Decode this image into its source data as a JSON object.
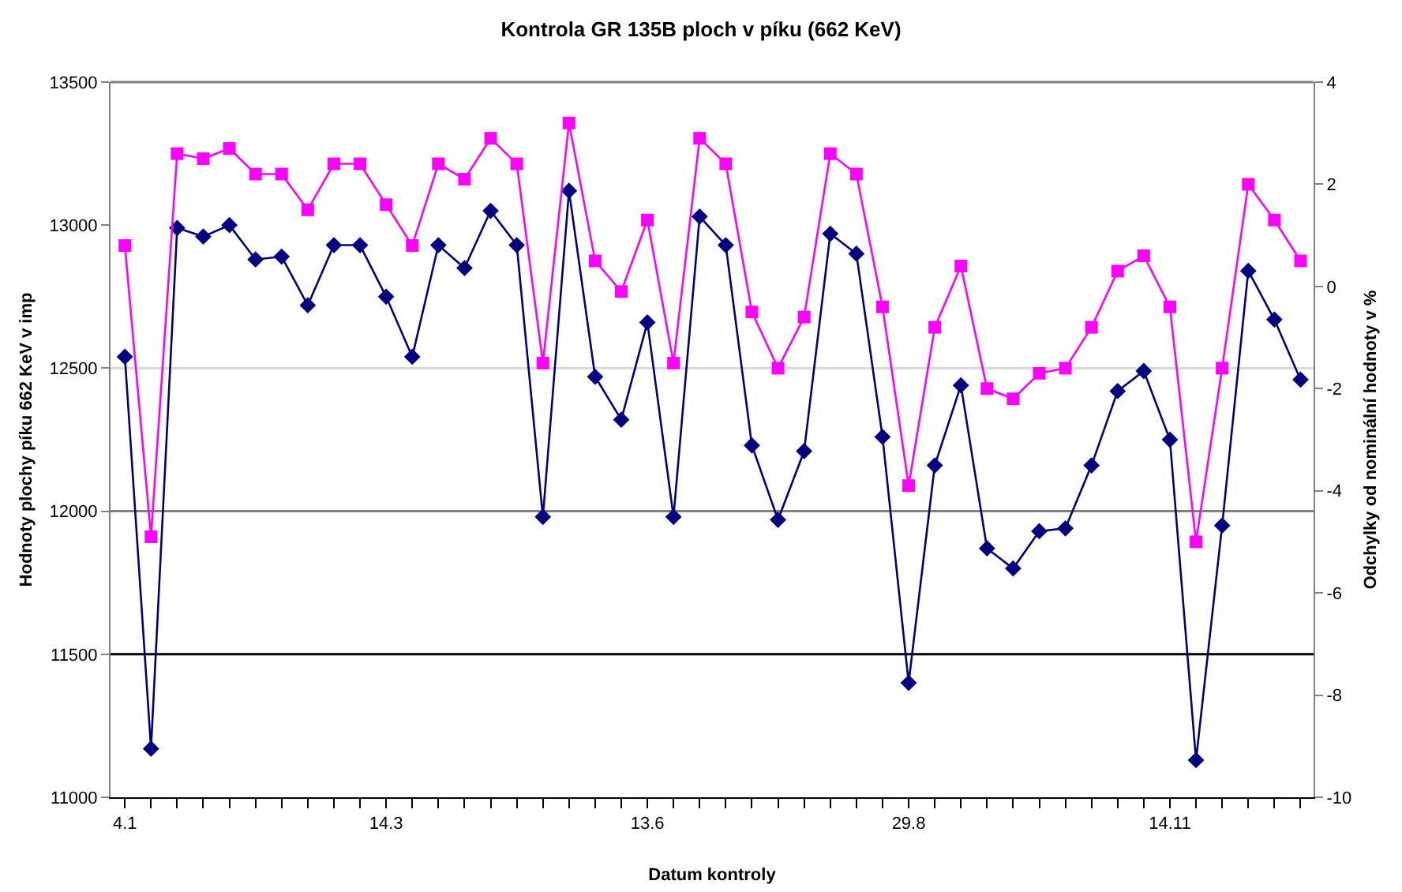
{
  "chart_data": {
    "type": "line",
    "title": "Kontrola GR 135B ploch v píku (662 KeV)",
    "xlabel": "Datum kontroly",
    "ylabel": "Hodnoty plochy píku 662 KeV v imp",
    "y2label": "Odchylky od nominální hodnoty v %",
    "categories": [
      "4.1",
      null,
      null,
      null,
      null,
      null,
      null,
      null,
      null,
      null,
      "14.3",
      null,
      null,
      null,
      null,
      null,
      null,
      null,
      null,
      null,
      "13.6",
      null,
      null,
      null,
      null,
      null,
      null,
      null,
      null,
      null,
      "29.8",
      null,
      null,
      null,
      null,
      null,
      null,
      null,
      null,
      null,
      "14.11",
      null,
      null,
      null,
      null,
      null
    ],
    "series": [
      {
        "color": "#000080",
        "marker": "diamond",
        "values": [
          12540,
          11170,
          12990,
          12960,
          13000,
          12880,
          12890,
          12720,
          12930,
          12930,
          12750,
          12540,
          12930,
          12850,
          13050,
          12930,
          11980,
          13120,
          12470,
          12320,
          12660,
          11980,
          13030,
          12930,
          12230,
          11970,
          12210,
          12970,
          12900,
          12260,
          11400,
          12160,
          12440,
          11870,
          11800,
          11930,
          11940,
          12160,
          12420,
          12490,
          12250,
          11130,
          11950,
          12840,
          12670,
          12460
        ]
      },
      {
        "color": "#ff00ff",
        "marker": "square",
        "axis": "y2",
        "values": [
          0.8,
          -4.9,
          2.6,
          2.5,
          2.7,
          2.2,
          2.2,
          1.5,
          2.4,
          2.4,
          1.6,
          0.8,
          2.4,
          2.1,
          2.9,
          2.4,
          -1.5,
          3.2,
          0.5,
          -0.1,
          1.3,
          -1.5,
          2.9,
          2.4,
          -0.5,
          -1.6,
          -0.6,
          2.6,
          2.2,
          -0.4,
          -3.9,
          -0.8,
          0.4,
          -2.0,
          -2.2,
          -1.7,
          -1.6,
          -0.8,
          0.3,
          0.6,
          -0.4,
          -5.0,
          -1.6,
          2.0,
          1.3,
          0.5
        ]
      }
    ],
    "ylim": [
      11000,
      13500
    ],
    "yticks": [
      11000,
      11500,
      12000,
      12500,
      13000,
      13500
    ],
    "y2lim": [
      -10,
      4
    ],
    "y2ticks": [
      -10,
      -8,
      -6,
      -4,
      -2,
      0,
      2,
      4
    ],
    "ref_lines": [
      {
        "axis": "y",
        "value": 12500,
        "color": "#d9d9d9"
      },
      {
        "axis": "y",
        "value": 12000,
        "color": "#808080"
      },
      {
        "axis": "y",
        "value": 11500,
        "color": "#000000"
      }
    ],
    "grid": false,
    "line_style": "solid"
  }
}
